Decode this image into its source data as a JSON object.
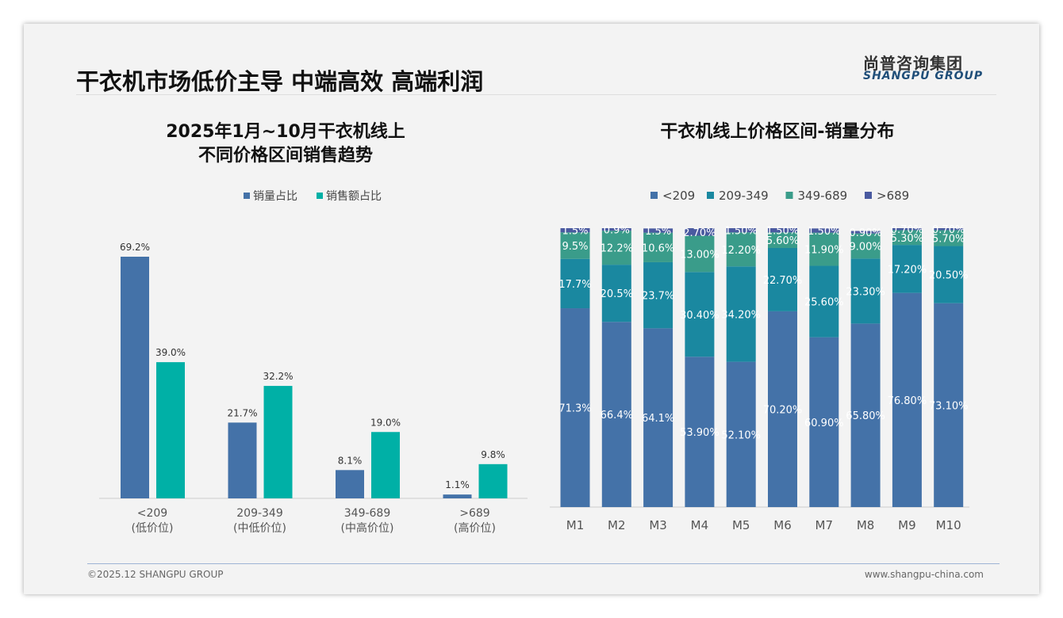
{
  "header": {
    "title": "干衣机市场低价主导 中端高效 高端利润",
    "logo_cn": "尚普咨询集团",
    "logo_en": "SHANGPU GROUP"
  },
  "footer": {
    "copyright": "©2025.12 SHANGPU GROUP",
    "url": "www.shangpu-china.com"
  },
  "chart_data": [
    {
      "type": "bar",
      "title_line1": "2025年1月~10月干衣机线上",
      "title_line2": "不同价格区间销售趋势",
      "categories": [
        "<209",
        "209-349",
        "349-689",
        ">689"
      ],
      "category_sub": [
        "(低价位)",
        "(中低价位)",
        "(中高价位)",
        "(高价位)"
      ],
      "series": [
        {
          "name": "销量占比",
          "color": "#4472a8",
          "values": [
            69.2,
            21.7,
            8.1,
            1.1
          ],
          "labels": [
            "69.2%",
            "21.7%",
            "8.1%",
            "1.1%"
          ]
        },
        {
          "name": "销售额占比",
          "color": "#00b0a6",
          "values": [
            39.0,
            32.2,
            19.0,
            9.8
          ],
          "labels": [
            "39.0%",
            "32.2%",
            "19.0%",
            "9.8%"
          ]
        }
      ],
      "ylim": [
        0,
        80
      ],
      "legend": "top"
    },
    {
      "type": "bar",
      "stacked": true,
      "title": "干衣机线上价格区间-销量分布",
      "categories": [
        "M1",
        "M2",
        "M3",
        "M4",
        "M5",
        "M6",
        "M7",
        "M8",
        "M9",
        "M10"
      ],
      "series": [
        {
          "name": "<209",
          "color": "#4472a8",
          "values": [
            71.3,
            66.4,
            64.1,
            53.9,
            52.1,
            70.2,
            60.9,
            65.8,
            76.8,
            73.1
          ],
          "labels": [
            "71.3%",
            "66.4%",
            "64.1%",
            "53.90%",
            "52.10%",
            "70.20%",
            "60.90%",
            "65.80%",
            "76.80%",
            "73.10%"
          ]
        },
        {
          "name": "209-349",
          "color": "#1a88a0",
          "values": [
            17.7,
            20.5,
            23.7,
            30.4,
            34.2,
            22.7,
            25.6,
            23.3,
            17.2,
            20.5
          ],
          "labels": [
            "17.7%",
            "20.5%",
            "23.7%",
            "30.40%",
            "34.20%",
            "22.70%",
            "25.60%",
            "23.30%",
            "17.20%",
            "20.50%"
          ]
        },
        {
          "name": "349-689",
          "color": "#3a9c8a",
          "values": [
            9.5,
            12.2,
            10.6,
            13.0,
            12.2,
            5.6,
            11.9,
            9.0,
            5.3,
            5.7
          ],
          "labels": [
            "9.5%",
            "12.2%",
            "10.6%",
            "13.00%",
            "12.20%",
            "5.60%",
            "11.90%",
            "9.00%",
            "5.30%",
            "5.70%"
          ]
        },
        {
          "name": ">689",
          "color": "#4a5aa0",
          "values": [
            1.5,
            0.9,
            1.5,
            2.7,
            1.5,
            1.5,
            1.5,
            0.9,
            0.7,
            0.7
          ],
          "labels": [
            "1.5%",
            "0.9%",
            "1.5%",
            "2.70%",
            "1.50%",
            "1.50%",
            "1.50%",
            "0.90%",
            "0.70%",
            "0.70%"
          ]
        }
      ],
      "ylim": [
        0,
        100
      ],
      "legend": "top"
    }
  ]
}
